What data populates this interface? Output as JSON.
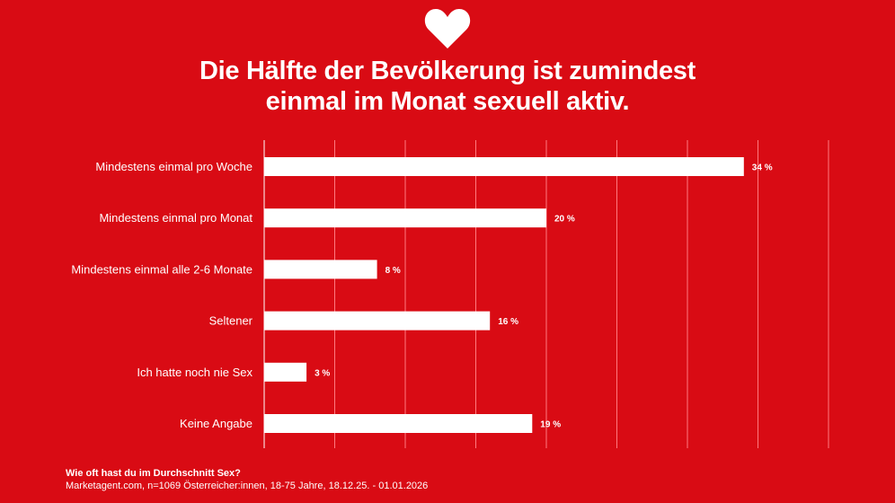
{
  "title": {
    "line1": "Die Hälfte der Bevölkerung ist zumindest",
    "line2": "einmal im Monat sexuell aktiv."
  },
  "icon": "heart-icon",
  "colors": {
    "background": "#d90b14",
    "bars": "#ffffff",
    "text": "#ffffff",
    "grid": "#ff7a80"
  },
  "chart_data": {
    "type": "bar",
    "orientation": "horizontal",
    "categories": [
      "Mindestens einmal pro Woche",
      "Mindestens einmal pro Monat",
      "Mindestens einmal alle 2-6 Monate",
      "Seltener",
      "Ich hatte noch nie Sex",
      "Keine Angabe"
    ],
    "values": [
      34,
      20,
      8,
      16,
      3,
      19
    ],
    "value_labels": [
      "34 %",
      "20 %",
      "8 %",
      "16 %",
      "3 %",
      "19 %"
    ],
    "xlim": [
      0,
      40
    ],
    "grid": true,
    "legend": "none"
  },
  "footer": {
    "question": "Wie oft hast du im Durchschnitt Sex?",
    "source": "Marketagent.com, n=1069 Österreicher:innen, 18-75 Jahre, 18.12.25. - 01.01.2026"
  }
}
